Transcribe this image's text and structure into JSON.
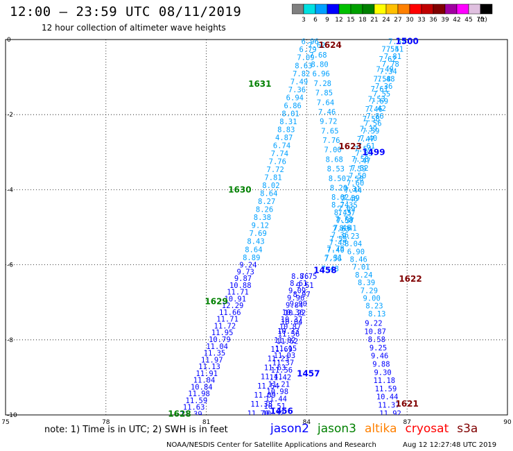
{
  "title": "12:00 – 23:59 UTC 08/11/2019",
  "subtitle": "12 hour collection of altimeter wave heights",
  "note": "note: 1) Time is in UTC; 2) SWH is in feet",
  "footer": "NOAA/NESDIS Center for Satellite Applications and Research",
  "timestamp": "Aug 12 12:27:48 UTC 2019",
  "colorbar": {
    "unit": "(ft)",
    "colors": [
      "#808080",
      "#00e0e0",
      "#00a0ff",
      "#0000ff",
      "#00c000",
      "#00a000",
      "#008000",
      "#ffff00",
      "#ffc000",
      "#ff8000",
      "#ff0000",
      "#c00000",
      "#800000",
      "#a000a0",
      "#ff00ff",
      "#e0c0e0",
      "#000000"
    ],
    "labels": [
      "3",
      "6",
      "9",
      "12",
      "15",
      "18",
      "21",
      "24",
      "27",
      "30",
      "33",
      "36",
      "39",
      "42",
      "45",
      "70"
    ]
  },
  "legend": [
    {
      "name": "jason2",
      "color": "#0000ff"
    },
    {
      "name": "jason3",
      "color": "#008000"
    },
    {
      "name": "altika",
      "color": "#ff8000"
    },
    {
      "name": "cryosat",
      "color": "#ff0000"
    },
    {
      "name": "s3a",
      "color": "#800000"
    }
  ],
  "chart_data": {
    "type": "scatter",
    "xlim": [
      75,
      90
    ],
    "ylim": [
      -10,
      0
    ],
    "xticks": [
      "75",
      "78",
      "81",
      "84",
      "87",
      "90"
    ],
    "yticks": [
      "0",
      "-2",
      "-4",
      "-6",
      "-8",
      "-10"
    ],
    "grid": true,
    "passes": [
      {
        "label": "1628",
        "label_color": "#008000",
        "label_pos": [
          80.2,
          -9.97
        ],
        "color": "#0000ff",
        "x0": 80.55,
        "y0": -9.97,
        "x1": 82.25,
        "y1": -6.0,
        "values": [
          "11.39",
          "11.63",
          "11.59",
          "11.98",
          "10.84",
          "11.04",
          "11.91",
          "11.13",
          "11.97",
          "11.35",
          "11.04",
          "10.79",
          "11.95",
          "11.72",
          "11.71",
          "11.66",
          "12.29",
          "10.91",
          "11.71",
          "10.88",
          "9.87",
          "9.73",
          "9.24"
        ]
      },
      {
        "label": "1629",
        "label_color": "#008000",
        "label_pos": [
          81.3,
          -6.98
        ],
        "color": "#00a0ff",
        "x0": 82.35,
        "y0": -5.8,
        "x1": 84.1,
        "y1": -0.05,
        "values": [
          "8.89",
          "8.64",
          "8.43",
          "7.69",
          "9.12",
          "8.38",
          "8.26",
          "8.27",
          "8.64",
          "8.02",
          "7.81",
          "7.72",
          "7.76",
          "7.74",
          "6.74",
          "4.87",
          "8.83",
          "8.31",
          "8.01",
          "6.86",
          "6.94",
          "7.36",
          "7.49",
          "7.82",
          "8.63",
          "7.09",
          "6.79",
          "6.96"
        ]
      },
      {
        "label": "1631",
        "label_color": "#008000",
        "label_pos": [
          82.6,
          -1.18
        ],
        "color": "#00a0ff",
        "values": []
      },
      {
        "label": "1630",
        "label_color": "#008000",
        "label_pos": [
          82.0,
          -4.0
        ],
        "color": "#00a0ff",
        "values": []
      },
      {
        "label": "1624",
        "label_color": "#800000",
        "label_pos": [
          84.7,
          -0.15
        ],
        "color": "#00a0ff",
        "x0": 84.3,
        "y0": -0.15,
        "x1": 85.0,
        "y1": -4.2,
        "values": [
          "7.62",
          "7.68",
          "8.80",
          "6.96",
          "7.28",
          "7.85",
          "7.64",
          "7.46",
          "9.72",
          "7.65",
          "7.76",
          "7.00",
          "8.68",
          "8.53",
          "8.50",
          "8.20",
          "8.02"
        ]
      },
      {
        "label": "1623",
        "label_color": "#800000",
        "label_pos": [
          85.3,
          -2.85
        ],
        "color": "#00a0ff",
        "values": []
      },
      {
        "label": "1622",
        "label_color": "#800000",
        "label_pos": [
          87.1,
          -6.38
        ],
        "color": "#00a0ff",
        "x0": 85.0,
        "y0": -4.4,
        "x1": 86.1,
        "y1": -7.3,
        "values": [
          "8.74",
          "8.45",
          "7.37",
          "8.41",
          "9.23",
          "8.04",
          "6.90",
          "8.46",
          "7.01",
          "8.24",
          "8.39",
          "7.29",
          "9.00",
          "8.23",
          "8.13"
        ]
      },
      {
        "label": "1621",
        "label_color": "#800000",
        "label_pos": [
          87.0,
          -9.7
        ],
        "color": "#0000ff",
        "x0": 86.0,
        "y0": -7.55,
        "x1": 86.5,
        "y1": -9.95,
        "values": [
          "9.22",
          "10.87",
          "8.58",
          "9.25",
          "9.46",
          "9.88",
          "9.30",
          "11.18",
          "11.59",
          "10.44",
          "11.37",
          "11.92"
        ]
      },
      {
        "label": "1500",
        "label_color": "#0000ff",
        "label_pos": [
          87.0,
          -0.05
        ],
        "color": "#00a0ff",
        "x0": 86.7,
        "y0": -0.05,
        "x1": 84.8,
        "y1": -5.8,
        "values": [
          "7.57",
          "7.51",
          "7.81",
          "7.78",
          "7.34",
          "7.48",
          "7.36",
          "7.55",
          "7.69",
          "7.42",
          "7.86",
          "7.56",
          "7.59",
          "7.40",
          "7.61",
          "7.33",
          "7.47",
          "7.52",
          "7.50",
          "7.60",
          "7.44",
          "7.39",
          "7.35",
          "7.37",
          "7.58",
          "7.46",
          "7.36",
          "7.48",
          "7.40",
          "7.31"
        ]
      },
      {
        "label": "1499",
        "label_color": "#0000ff",
        "label_pos": [
          86.0,
          -3.0
        ],
        "color": "#00a0ff",
        "x0": 86.5,
        "y0": -0.25,
        "x1": 84.7,
        "y1": -6.1,
        "values": [
          "7.54",
          "7.62",
          "7.49",
          "7.58",
          "7.61",
          "7.53",
          "7.46",
          "7.58",
          "7.39",
          "7.47",
          "7.54",
          "7.58",
          "7.59",
          "7.50",
          "7.31",
          "7.46",
          "7.69",
          "7.73",
          "7.63",
          "7.55",
          "7.78",
          "7.56",
          "7.48"
        ]
      },
      {
        "label": "1458",
        "label_color": "#0000ff",
        "label_pos": [
          84.55,
          -6.15
        ],
        "color": "#0000ff",
        "x0": 83.8,
        "y0": -6.3,
        "x1": 83.0,
        "y1": -9.95,
        "values": [
          "8.76",
          "8.61",
          "9.09",
          "9.96",
          "9.84",
          "10.36",
          "10.37",
          "10.87",
          "11.56",
          "11.62",
          "11.15",
          "11.03",
          "11.37",
          "11.56",
          "11.42",
          "11.21",
          "10.98",
          "11.44",
          "10.51",
          "10.32"
        ]
      },
      {
        "label": "1457",
        "label_color": "#0000ff",
        "label_pos": [
          84.05,
          -8.9
        ],
        "color": "#0000ff",
        "x0": 84.05,
        "y0": -6.3,
        "x1": 82.55,
        "y1": -9.95,
        "values": [
          "8.75",
          "9.51",
          "8.97",
          "9.90",
          "10.22",
          "10.04",
          "10.33",
          "11.02",
          "11.69",
          "11.23",
          "11.63",
          "11.41",
          "11.54",
          "11.09",
          "11.38",
          "11.70"
        ]
      },
      {
        "label": "1456",
        "label_color": "#0000ff",
        "label_pos": [
          83.25,
          -9.9
        ],
        "color": "#0000ff",
        "values": []
      }
    ]
  }
}
